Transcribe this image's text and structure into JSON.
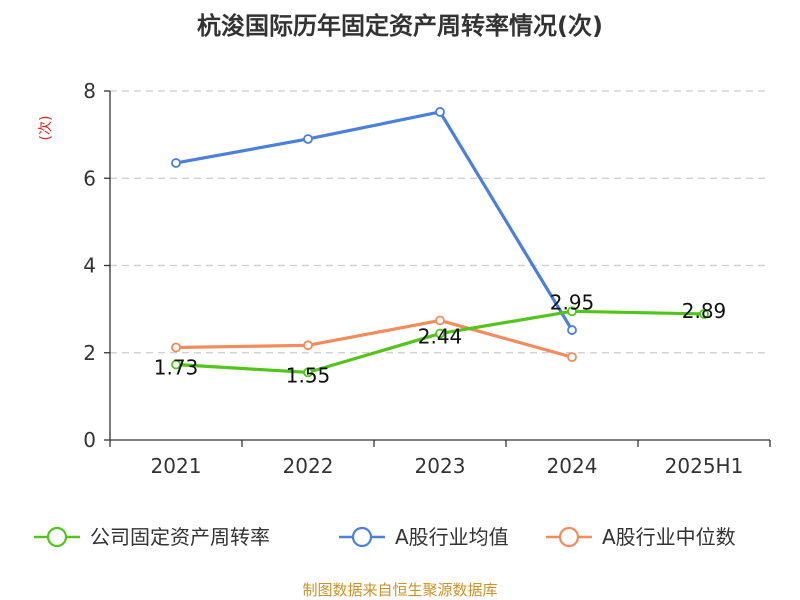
{
  "chart_data": {
    "type": "line",
    "title": "杭浚国际历年固定资产周转率情况(次)",
    "ylabel": "(次)",
    "xlabel": "",
    "ylim": [
      0,
      8
    ],
    "yticks": [
      "0",
      "2",
      "4",
      "6",
      "8"
    ],
    "categories": [
      "2021",
      "2022",
      "2023",
      "2024",
      "2025H1"
    ],
    "grid": true,
    "legend_position": "bottom",
    "series": [
      {
        "name": "公司固定资产周转率",
        "color": "#52c41a",
        "values": [
          1.73,
          1.55,
          2.44,
          2.95,
          2.89
        ],
        "labels": [
          "1.73",
          "1.55",
          "2.44",
          "2.95",
          "2.89"
        ]
      },
      {
        "name": "A股行业均值",
        "color": "#4a7fdb",
        "values": [
          6.35,
          6.9,
          7.52,
          2.52,
          null
        ]
      },
      {
        "name": "A股行业中位数",
        "color": "#f38b5a",
        "values": [
          2.12,
          2.17,
          2.74,
          1.9,
          null
        ]
      }
    ],
    "ylabel_color": "#e02020",
    "source": "制图数据来自恒生聚源数据库",
    "source_color": "#c8932b"
  }
}
